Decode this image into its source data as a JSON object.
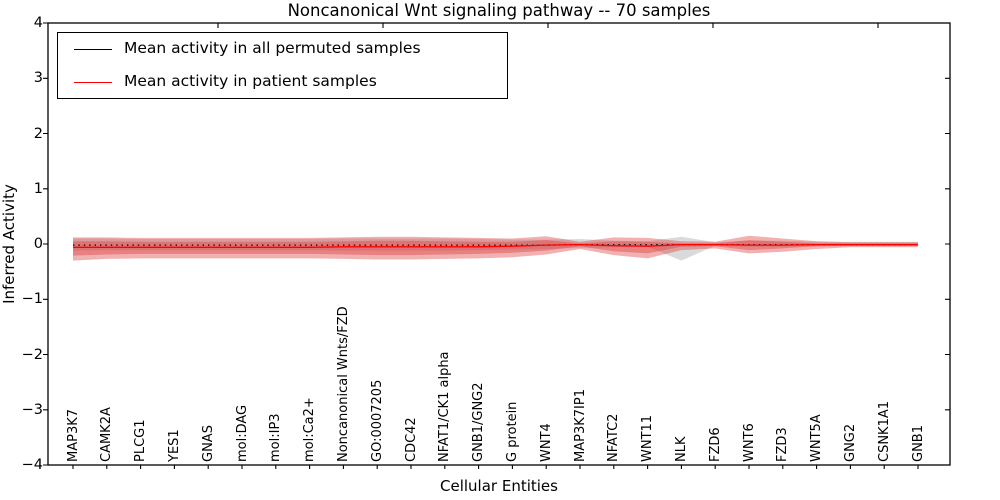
{
  "figure": {
    "title": "Noncanonical Wnt signaling pathway -- 70 samples",
    "x_axis_label": "Cellular Entities",
    "y_axis_label": "Inferred Activity",
    "background_color": "#ffffff"
  },
  "legend": {
    "items": [
      {
        "label": "Mean activity in all permuted samples",
        "color": "#000000",
        "style": "solid"
      },
      {
        "label": "Mean activity in patient samples",
        "color": "#ff0000",
        "style": "solid"
      }
    ]
  },
  "chart_data": {
    "type": "line",
    "title": "Noncanonical Wnt signaling pathway -- 70 samples",
    "xlabel": "Cellular Entities",
    "ylabel": "Inferred Activity",
    "ylim": [
      -4,
      4
    ],
    "y_ticks": [
      4,
      3,
      2,
      1,
      0,
      -1,
      -2,
      -3,
      -4
    ],
    "grid": false,
    "legend_position": "upper left",
    "categories": [
      "MAP3K7",
      "CAMK2A",
      "PLCG1",
      "YES1",
      "GNAS",
      "mol:DAG",
      "mol:IP3",
      "mol:Ca2+",
      "Noncanonical Wnts/FZD",
      "GO:0007205",
      "CDC42",
      "NFAT1/CK1 alpha",
      "GNB1/GNG2",
      "G protein",
      "WNT4",
      "MAP3K7IP1",
      "NFATC2",
      "WNT11",
      "NLK",
      "FZD6",
      "WNT6",
      "FZD3",
      "WNT5A",
      "GNG2",
      "CSNK1A1",
      "GNB1"
    ],
    "series": [
      {
        "name": "Mean activity in all permuted samples",
        "color": "#000000",
        "line_style": "dotted",
        "values": [
          -0.02,
          -0.02,
          -0.02,
          -0.02,
          -0.02,
          -0.02,
          -0.02,
          -0.02,
          -0.02,
          -0.02,
          -0.02,
          -0.02,
          -0.02,
          -0.02,
          -0.02,
          -0.01,
          -0.01,
          -0.01,
          -0.01,
          -0.01,
          -0.01,
          -0.01,
          -0.01,
          -0.01,
          -0.01,
          -0.01
        ]
      },
      {
        "name": "Mean activity in patient samples",
        "color": "#ff0000",
        "line_style": "solid",
        "values": [
          -0.06,
          -0.06,
          -0.06,
          -0.06,
          -0.06,
          -0.06,
          -0.06,
          -0.06,
          -0.05,
          -0.05,
          -0.05,
          -0.05,
          -0.05,
          -0.04,
          -0.02,
          -0.01,
          -0.03,
          -0.04,
          -0.01,
          -0.01,
          -0.02,
          -0.02,
          -0.01,
          -0.01,
          -0.01,
          -0.01
        ]
      }
    ],
    "bands": [
      {
        "name": "permuted-samples-range",
        "color": "#d3d3d3",
        "opacity": 0.85,
        "upper": [
          0.1,
          0.1,
          0.09,
          0.09,
          0.09,
          0.09,
          0.09,
          0.09,
          0.1,
          0.1,
          0.1,
          0.1,
          0.09,
          0.08,
          0.08,
          0.09,
          0.06,
          0.05,
          0.13,
          0.03,
          0.06,
          0.06,
          0.04,
          0.04,
          0.04,
          0.04
        ],
        "lower": [
          -0.12,
          -0.11,
          -0.11,
          -0.11,
          -0.11,
          -0.11,
          -0.11,
          -0.11,
          -0.12,
          -0.12,
          -0.12,
          -0.12,
          -0.11,
          -0.1,
          -0.09,
          -0.07,
          -0.06,
          -0.05,
          -0.3,
          -0.03,
          -0.05,
          -0.05,
          -0.04,
          -0.04,
          -0.04,
          -0.04
        ]
      },
      {
        "name": "patient-samples-outer-range",
        "color": "#dc3c3c",
        "opacity": 0.4,
        "upper": [
          0.12,
          0.12,
          0.11,
          0.11,
          0.11,
          0.11,
          0.11,
          0.11,
          0.12,
          0.13,
          0.13,
          0.12,
          0.11,
          0.1,
          0.14,
          0.04,
          0.12,
          0.11,
          0.05,
          0.04,
          0.15,
          0.1,
          0.05,
          0.03,
          0.03,
          0.03
        ],
        "lower": [
          -0.3,
          -0.27,
          -0.26,
          -0.26,
          -0.26,
          -0.26,
          -0.26,
          -0.26,
          -0.27,
          -0.28,
          -0.28,
          -0.27,
          -0.26,
          -0.24,
          -0.19,
          -0.09,
          -0.2,
          -0.26,
          -0.11,
          -0.08,
          -0.17,
          -0.14,
          -0.09,
          -0.06,
          -0.06,
          -0.06
        ]
      },
      {
        "name": "patient-samples-inner-range",
        "color": "#dc3c3c",
        "opacity": 0.4,
        "upper": [
          0.05,
          0.05,
          0.04,
          0.04,
          0.04,
          0.04,
          0.04,
          0.04,
          0.05,
          0.06,
          0.06,
          0.05,
          0.04,
          0.04,
          0.07,
          0.01,
          0.05,
          0.04,
          0.01,
          0.01,
          0.07,
          0.04,
          0.01,
          0.01,
          0.01,
          0.01
        ],
        "lower": [
          -0.21,
          -0.19,
          -0.18,
          -0.18,
          -0.18,
          -0.18,
          -0.18,
          -0.18,
          -0.19,
          -0.2,
          -0.2,
          -0.19,
          -0.18,
          -0.16,
          -0.12,
          -0.04,
          -0.13,
          -0.17,
          -0.05,
          -0.04,
          -0.11,
          -0.08,
          -0.04,
          -0.03,
          -0.03,
          -0.03
        ]
      }
    ]
  }
}
